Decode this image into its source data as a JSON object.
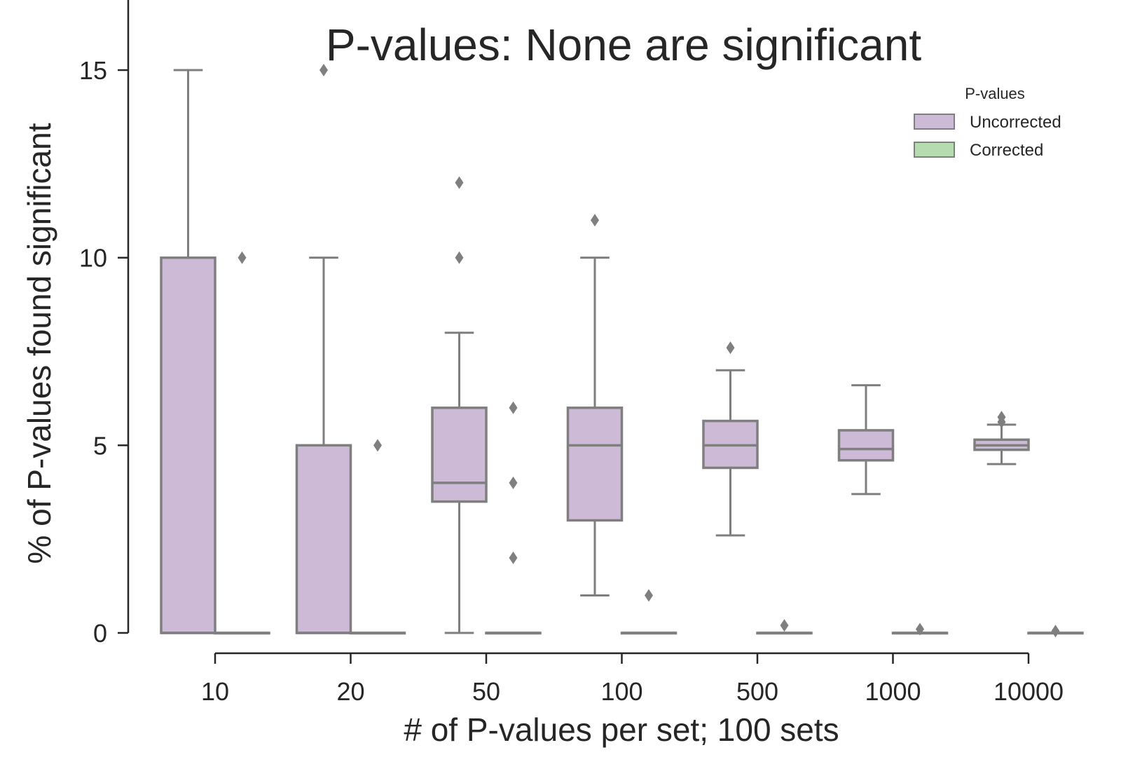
{
  "chart_data": {
    "type": "box",
    "title": "P-values: None are significant",
    "xlabel": "# of P-values per set; 100 sets",
    "ylabel": "% of P-values found significant",
    "categories": [
      "10",
      "20",
      "50",
      "100",
      "500",
      "1000",
      "10000"
    ],
    "ylim": [
      -0.5,
      17
    ],
    "yticks": [
      0,
      5,
      10,
      15
    ],
    "grid": false,
    "legend": {
      "title": "P-values",
      "placement": "top-right",
      "entries": [
        "Uncorrected",
        "Corrected"
      ]
    },
    "series": [
      {
        "name": "Uncorrected",
        "color": "#cdbad6",
        "boxes": [
          {
            "q1": 0,
            "median": 0,
            "q3": 10,
            "whisker_low": 0,
            "whisker_high": 15,
            "outliers": []
          },
          {
            "q1": 0,
            "median": 0,
            "q3": 5,
            "whisker_low": 0,
            "whisker_high": 10,
            "outliers": [
              15
            ]
          },
          {
            "q1": 3.5,
            "median": 4,
            "q3": 6,
            "whisker_low": 0,
            "whisker_high": 8,
            "outliers": [
              10,
              12
            ]
          },
          {
            "q1": 3,
            "median": 5,
            "q3": 6,
            "whisker_low": 1,
            "whisker_high": 10,
            "outliers": [
              11
            ]
          },
          {
            "q1": 4.4,
            "median": 5,
            "q3": 5.65,
            "whisker_low": 2.6,
            "whisker_high": 7,
            "outliers": [
              7.6
            ]
          },
          {
            "q1": 4.6,
            "median": 4.9,
            "q3": 5.4,
            "whisker_low": 3.7,
            "whisker_high": 6.6,
            "outliers": []
          },
          {
            "q1": 4.88,
            "median": 5.0,
            "q3": 5.15,
            "whisker_low": 4.5,
            "whisker_high": 5.55,
            "outliers": [
              5.62,
              5.75
            ]
          }
        ]
      },
      {
        "name": "Corrected",
        "color": "#b6dbb0",
        "boxes": [
          {
            "q1": 0,
            "median": 0,
            "q3": 0,
            "whisker_low": 0,
            "whisker_high": 0,
            "outliers": [
              10
            ]
          },
          {
            "q1": 0,
            "median": 0,
            "q3": 0,
            "whisker_low": 0,
            "whisker_high": 0,
            "outliers": [
              5
            ]
          },
          {
            "q1": 0,
            "median": 0,
            "q3": 0,
            "whisker_low": 0,
            "whisker_high": 0,
            "outliers": [
              2,
              4,
              6
            ]
          },
          {
            "q1": 0,
            "median": 0,
            "q3": 0,
            "whisker_low": 0,
            "whisker_high": 0,
            "outliers": [
              1
            ]
          },
          {
            "q1": 0,
            "median": 0,
            "q3": 0,
            "whisker_low": 0,
            "whisker_high": 0,
            "outliers": [
              0.2
            ]
          },
          {
            "q1": 0,
            "median": 0,
            "q3": 0,
            "whisker_low": 0,
            "whisker_high": 0,
            "outliers": [
              0.1
            ]
          },
          {
            "q1": 0,
            "median": 0,
            "q3": 0,
            "whisker_low": 0,
            "whisker_high": 0,
            "outliers": [
              0.05
            ]
          }
        ]
      }
    ],
    "line_color": "#7f7f7f"
  }
}
